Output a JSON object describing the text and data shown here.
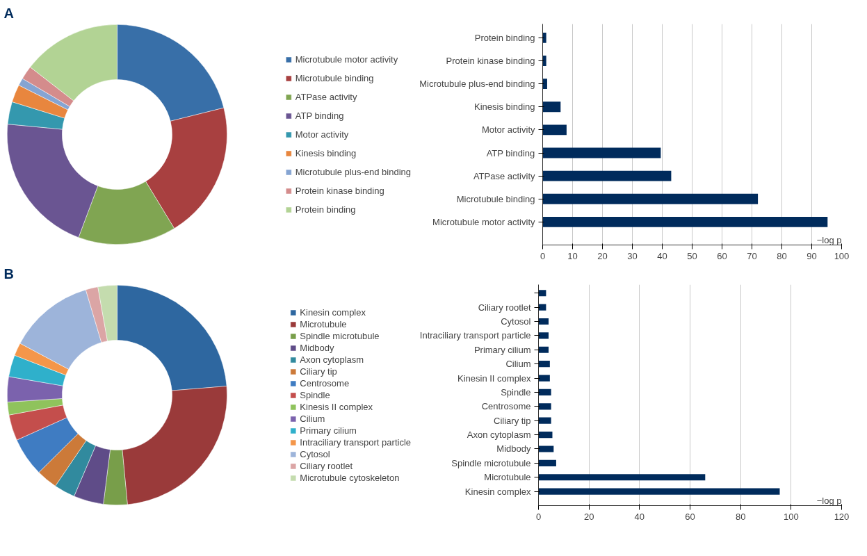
{
  "chart_data": [
    {
      "type": "donut",
      "title": "A",
      "legend": "right",
      "categories": [
        "Microtubule motor activity",
        "Microtubule binding",
        "ATPase activity",
        "ATP binding",
        "Motor activity",
        "Kinesis binding",
        "Microtubule plus-end binding",
        "Protein kinase binding",
        "Protein binding"
      ],
      "values": [
        21.1,
        20.2,
        14.4,
        20.8,
        3.3,
        2.6,
        1.1,
        2.0,
        14.5
      ],
      "colors": [
        "#386fa8",
        "#a84040",
        "#80a552",
        "#6a5592",
        "#3498ae",
        "#e8863e",
        "#85a4d2",
        "#d48c8c",
        "#b2d394"
      ]
    },
    {
      "type": "bar",
      "orientation": "horizontal",
      "categories": [
        "Protein binding",
        "Protein kinase binding",
        "Microtubule plus-end binding",
        "Kinesis binding",
        "Motor activity",
        "ATP binding",
        "ATPase activity",
        "Microtubule binding",
        "Microtubule motor activity"
      ],
      "values": [
        1.2,
        1.2,
        1.5,
        6,
        8,
        39.5,
        43,
        72,
        95.3
      ],
      "color": "#002b5c",
      "xlim": [
        0,
        100
      ],
      "xticks": [
        0,
        10,
        20,
        30,
        40,
        50,
        60,
        70,
        80,
        90,
        100
      ],
      "xlabel": "−log p",
      "grid": "x",
      "legend": false
    },
    {
      "type": "donut",
      "title": "B",
      "legend": "right",
      "categories": [
        "Kinesin complex",
        "Microtubule",
        "Spindle microtubule",
        "Midbody",
        "Axon cytoplasm",
        "Ciliary tip",
        "Centrosome",
        "Spindle",
        "Kinesis II complex",
        "Cilium",
        "Primary cilium",
        "Intraciliary transport particle",
        "Cytosol",
        "Ciliary rootlet",
        "Microtubule cytoskeleton"
      ],
      "values": [
        23.7,
        24.8,
        3.5,
        4.4,
        3.1,
        3.1,
        5.7,
        3.8,
        1.9,
        3.7,
        3.2,
        1.9,
        12.6,
        1.8,
        2.8
      ],
      "colors": [
        "#2e67a0",
        "#9a3a3a",
        "#789e4a",
        "#5f4c88",
        "#318a9e",
        "#cc7a39",
        "#3f7cc2",
        "#c44e4c",
        "#8fc35c",
        "#7b62ad",
        "#2fb0cb",
        "#f4964a",
        "#9db4da",
        "#dba5a5",
        "#c4dcae"
      ]
    },
    {
      "type": "bar",
      "orientation": "horizontal",
      "categories": [
        null,
        "Ciliary rootlet",
        "Cytosol",
        "Intraciliary transport particle",
        "Primary cilium",
        "Cilium",
        "Kinesin II complex",
        "Spindle",
        "Centrosome",
        "Ciliary tip",
        "Axon cytoplasm",
        "Midbody",
        "Spindle microtubule",
        "Microtubule",
        "Kinesin complex"
      ],
      "values": [
        3,
        3,
        4,
        4,
        4,
        4.5,
        4.5,
        5,
        5,
        5,
        5.5,
        6,
        7,
        66,
        95.5
      ],
      "color": "#002b5c",
      "xlim": [
        0,
        120
      ],
      "xticks": [
        0,
        20,
        40,
        60,
        80,
        100,
        120
      ],
      "xlabel": "−log p",
      "grid": "x",
      "legend": false
    }
  ]
}
